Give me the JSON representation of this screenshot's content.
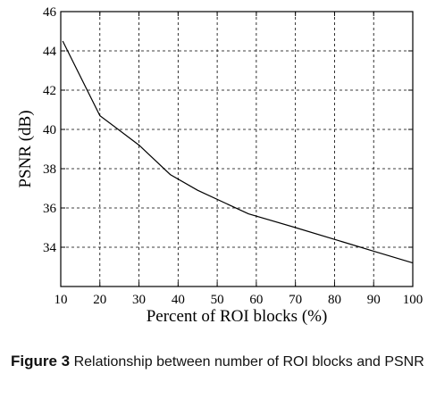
{
  "chart_data": {
    "type": "line",
    "title": "",
    "xlabel": "Percent of ROI blocks (%)",
    "ylabel": "PSNR (dB)",
    "xlim": [
      10,
      100
    ],
    "ylim": [
      32,
      46
    ],
    "xticks": [
      10,
      20,
      30,
      40,
      50,
      60,
      70,
      80,
      90,
      100
    ],
    "yticks": [
      34,
      36,
      38,
      40,
      42,
      44,
      46
    ],
    "grid": true,
    "series": [
      {
        "x": [
          10.5,
          20,
          30,
          38,
          45,
          58,
          70,
          80,
          90,
          100
        ],
        "y": [
          44.5,
          40.7,
          39.2,
          37.7,
          36.9,
          35.7,
          35.0,
          34.4,
          33.8,
          33.2
        ]
      }
    ]
  },
  "caption": {
    "label": "Figure 3",
    "text": "Relationship between number of ROI blocks and PSNR"
  }
}
